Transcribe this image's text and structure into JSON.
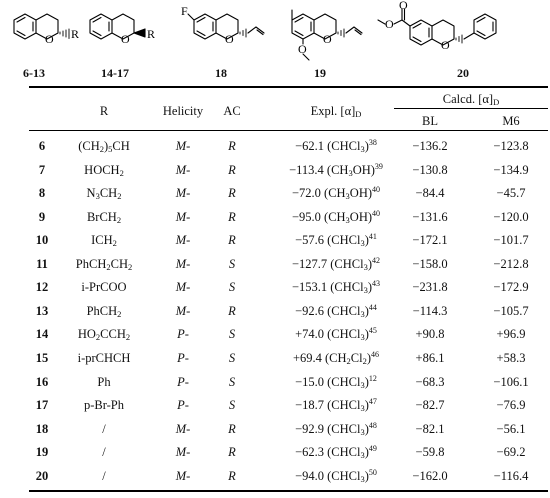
{
  "structures": [
    {
      "label": "6-13",
      "substituent": "R"
    },
    {
      "label": "14-17",
      "substituent": "R"
    },
    {
      "label": "18",
      "atom": "F"
    },
    {
      "label": "19"
    },
    {
      "label": "20"
    }
  ],
  "table": {
    "headers": {
      "r": "R",
      "helicity": "Helicity",
      "ac": "AC",
      "expl_prefix": "Expl. [α]",
      "expl_sub": "D",
      "calcd_prefix": "Calcd. [α]",
      "calcd_sub": "D",
      "bl": "BL",
      "m6": "M6"
    },
    "rows": [
      {
        "id": "6",
        "r": [
          [
            "(CH",
            ""
          ],
          [
            "2",
            "sub"
          ],
          [
            ")",
            ""
          ],
          [
            "5",
            "sub"
          ],
          [
            "CH",
            ""
          ]
        ],
        "helicity": "M-",
        "ac": "R",
        "expl": [
          [
            "−62.1 (CHCl",
            ""
          ],
          [
            "3",
            "sub"
          ],
          [
            ")",
            ""
          ],
          [
            "38",
            "sup"
          ]
        ],
        "bl": "−136.2",
        "m6": "−123.8"
      },
      {
        "id": "7",
        "r": [
          [
            "HOCH",
            ""
          ],
          [
            "2",
            "sub"
          ]
        ],
        "helicity": "M-",
        "ac": "R",
        "expl": [
          [
            "−113.4 (CH",
            ""
          ],
          [
            "3",
            "sub"
          ],
          [
            "OH)",
            ""
          ],
          [
            "39",
            "sup"
          ]
        ],
        "bl": "−130.8",
        "m6": "−134.9"
      },
      {
        "id": "8",
        "r": [
          [
            "N",
            ""
          ],
          [
            "3",
            "sub"
          ],
          [
            "CH",
            ""
          ],
          [
            "2",
            "sub"
          ]
        ],
        "helicity": "M-",
        "ac": "R",
        "expl": [
          [
            "−72.0 (CH",
            ""
          ],
          [
            "3",
            "sub"
          ],
          [
            "OH)",
            ""
          ],
          [
            "40",
            "sup"
          ]
        ],
        "bl": "−84.4",
        "m6": "−45.7"
      },
      {
        "id": "9",
        "r": [
          [
            "BrCH",
            ""
          ],
          [
            "2",
            "sub"
          ]
        ],
        "helicity": "M-",
        "ac": "R",
        "expl": [
          [
            "−95.0 (CH",
            ""
          ],
          [
            "3",
            "sub"
          ],
          [
            "OH)",
            ""
          ],
          [
            "40",
            "sup"
          ]
        ],
        "bl": "−131.6",
        "m6": "−120.0"
      },
      {
        "id": "10",
        "r": [
          [
            "ICH",
            ""
          ],
          [
            "2",
            "sub"
          ]
        ],
        "helicity": "M-",
        "ac": "R",
        "expl": [
          [
            "−57.6 (CHCl",
            ""
          ],
          [
            "3",
            "sub"
          ],
          [
            ")",
            ""
          ],
          [
            "41",
            "sup"
          ]
        ],
        "bl": "−172.1",
        "m6": "−101.7"
      },
      {
        "id": "11",
        "r": [
          [
            "PhCH",
            ""
          ],
          [
            "2",
            "sub"
          ],
          [
            "CH",
            ""
          ],
          [
            "2",
            "sub"
          ]
        ],
        "helicity": "M-",
        "ac": "S",
        "expl": [
          [
            "−127.7 (CHCl",
            ""
          ],
          [
            "3",
            "sub"
          ],
          [
            ")",
            ""
          ],
          [
            "42",
            "sup"
          ]
        ],
        "bl": "−158.0",
        "m6": "−212.8"
      },
      {
        "id": "12",
        "r": [
          [
            "i-PrCOO",
            ""
          ]
        ],
        "helicity": "M-",
        "ac": "S",
        "expl": [
          [
            "−153.1 (CHCl",
            ""
          ],
          [
            "3",
            "sub"
          ],
          [
            ")",
            ""
          ],
          [
            "43",
            "sup"
          ]
        ],
        "bl": "−231.8",
        "m6": "−172.9"
      },
      {
        "id": "13",
        "r": [
          [
            "PhCH",
            ""
          ],
          [
            "2",
            "sub"
          ]
        ],
        "helicity": "M-",
        "ac": "R",
        "expl": [
          [
            "−92.6 (CHCl",
            ""
          ],
          [
            "3",
            "sub"
          ],
          [
            ")",
            ""
          ],
          [
            "44",
            "sup"
          ]
        ],
        "bl": "−114.3",
        "m6": "−105.7"
      },
      {
        "id": "14",
        "r": [
          [
            "HO",
            ""
          ],
          [
            "2",
            "sub"
          ],
          [
            "CCH",
            ""
          ],
          [
            "2",
            "sub"
          ]
        ],
        "helicity": "P-",
        "ac": "S",
        "expl": [
          [
            "+74.0 (CHCl",
            ""
          ],
          [
            "3",
            "sub"
          ],
          [
            ")",
            ""
          ],
          [
            "45",
            "sup"
          ]
        ],
        "bl": "+90.8",
        "m6": "+96.9"
      },
      {
        "id": "15",
        "r": [
          [
            "i-prCHCH",
            ""
          ]
        ],
        "helicity": "P-",
        "ac": "S",
        "expl": [
          [
            "+69.4 (CH",
            ""
          ],
          [
            "2",
            "sub"
          ],
          [
            "Cl",
            ""
          ],
          [
            "2",
            "sub"
          ],
          [
            ")",
            ""
          ],
          [
            "46",
            "sup"
          ]
        ],
        "bl": "+86.1",
        "m6": "+58.3"
      },
      {
        "id": "16",
        "r": [
          [
            "Ph",
            ""
          ]
        ],
        "helicity": "P-",
        "ac": "S",
        "expl": [
          [
            "−15.0 (CHCl",
            ""
          ],
          [
            "3",
            "sub"
          ],
          [
            ")",
            ""
          ],
          [
            "12",
            "sup"
          ]
        ],
        "bl": "−68.3",
        "m6": "−106.1"
      },
      {
        "id": "17",
        "r": [
          [
            "p-Br-Ph",
            ""
          ]
        ],
        "helicity": "P-",
        "ac": "S",
        "expl": [
          [
            "−18.7 (CHCl",
            ""
          ],
          [
            "3",
            "sub"
          ],
          [
            ")",
            ""
          ],
          [
            "47",
            "sup"
          ]
        ],
        "bl": "−82.7",
        "m6": "−76.9"
      },
      {
        "id": "18",
        "r": [
          [
            "/",
            ""
          ]
        ],
        "helicity": "M-",
        "ac": "R",
        "expl": [
          [
            "−92.9 (CHCl",
            ""
          ],
          [
            "3",
            "sub"
          ],
          [
            ")",
            ""
          ],
          [
            "48",
            "sup"
          ]
        ],
        "bl": "−82.1",
        "m6": "−56.1"
      },
      {
        "id": "19",
        "r": [
          [
            "/",
            ""
          ]
        ],
        "helicity": "M-",
        "ac": "R",
        "expl": [
          [
            "−62.3 (CHCl",
            ""
          ],
          [
            "3",
            "sub"
          ],
          [
            ")",
            ""
          ],
          [
            "49",
            "sup"
          ]
        ],
        "bl": "−59.8",
        "m6": "−69.2"
      },
      {
        "id": "20",
        "r": [
          [
            "/",
            ""
          ]
        ],
        "helicity": "M-",
        "ac": "R",
        "expl": [
          [
            "−94.0 (CHCl",
            ""
          ],
          [
            "3",
            "sub"
          ],
          [
            ")",
            ""
          ],
          [
            "50",
            "sup"
          ]
        ],
        "bl": "−162.0",
        "m6": "−116.4"
      }
    ]
  }
}
